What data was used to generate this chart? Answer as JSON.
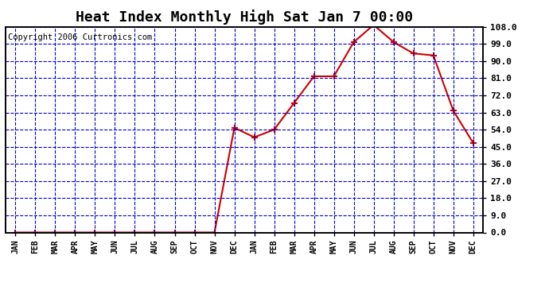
{
  "title": "Heat Index Monthly High Sat Jan 7 00:00",
  "copyright": "Copyright 2006 Curtronics.com",
  "x_labels": [
    "JAN",
    "FEB",
    "MAR",
    "APR",
    "MAY",
    "JUN",
    "JUL",
    "AUG",
    "SEP",
    "OCT",
    "NOV",
    "DEC",
    "JAN",
    "FEB",
    "MAR",
    "APR",
    "MAY",
    "JUN",
    "JUL",
    "AUG",
    "SEP",
    "OCT",
    "NOV",
    "DEC"
  ],
  "y_values": [
    0.0,
    0.0,
    0.0,
    0.0,
    0.0,
    0.0,
    0.0,
    0.0,
    0.0,
    0.0,
    0.0,
    55.0,
    50.0,
    54.0,
    68.0,
    82.0,
    82.0,
    100.0,
    109.0,
    100.0,
    94.0,
    93.0,
    64.0,
    47.0
  ],
  "y_ticks": [
    0.0,
    9.0,
    18.0,
    27.0,
    36.0,
    45.0,
    54.0,
    63.0,
    72.0,
    81.0,
    90.0,
    99.0,
    108.0
  ],
  "y_min": 0.0,
  "y_max": 108.0,
  "line_color": "#cc0000",
  "marker_color": "#cc0000",
  "bg_color": "#ffffff",
  "grid_color": "#0000cc",
  "title_fontsize": 13,
  "copyright_fontsize": 7.5
}
